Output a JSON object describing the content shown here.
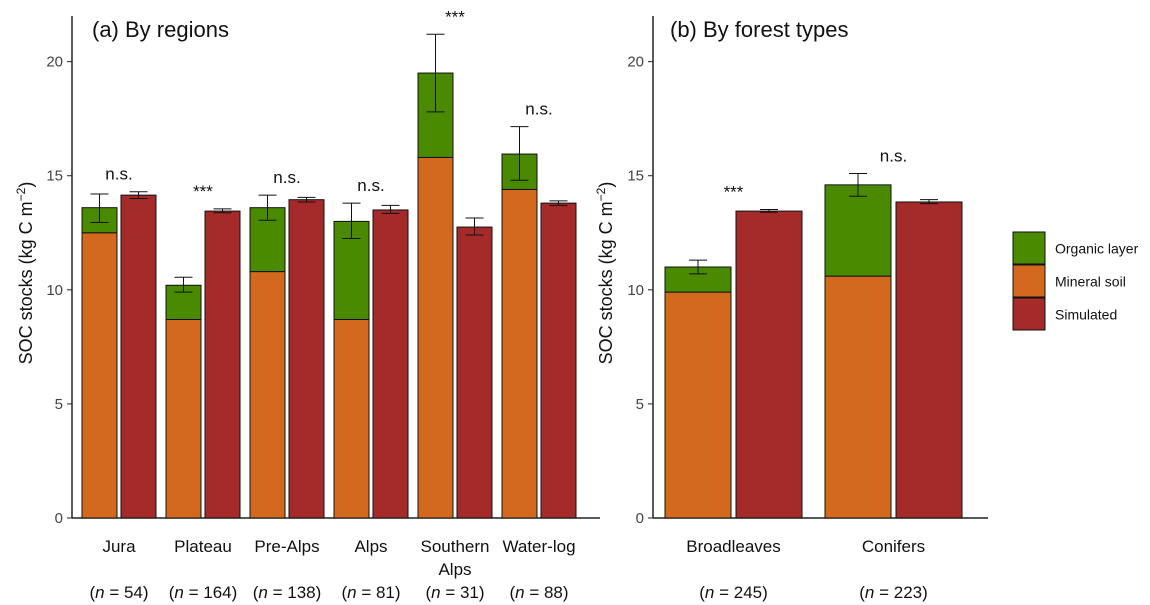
{
  "colors": {
    "organic": "#4a8a00",
    "mineral": "#d2691e",
    "simulated": "#a52a2a",
    "bar_stroke": "#111111",
    "axis": "#222222"
  },
  "legend": {
    "items": [
      {
        "label": "Organic layer",
        "key": "organic"
      },
      {
        "label": "Mineral soil",
        "key": "mineral"
      },
      {
        "label": "Simulated",
        "key": "simulated"
      }
    ]
  },
  "chart_data": [
    {
      "type": "bar",
      "title": "(a) By regions",
      "ylabel": "SOC stocks (kg C m",
      "ylabel_sup": "−2",
      "ylabel_end": ")",
      "ylim": [
        0,
        22
      ],
      "yticks": [
        0,
        5,
        10,
        15,
        20
      ],
      "categories": [
        {
          "label": [
            "Jura"
          ],
          "n": "54"
        },
        {
          "label": [
            "Plateau"
          ],
          "n": "164"
        },
        {
          "label": [
            "Pre-Alps"
          ],
          "n": "138"
        },
        {
          "label": [
            "Alps"
          ],
          "n": "81"
        },
        {
          "label": [
            "Southern",
            "Alps"
          ],
          "n": "31"
        },
        {
          "label": [
            "Water-log"
          ],
          "n": "88"
        }
      ],
      "series": [
        {
          "name": "Mineral soil",
          "values": [
            12.5,
            8.7,
            10.8,
            8.7,
            15.8,
            14.4
          ]
        },
        {
          "name": "Organic layer",
          "values": [
            1.1,
            1.5,
            2.8,
            4.3,
            3.7,
            1.55
          ]
        },
        {
          "name": "Simulated",
          "values": [
            14.15,
            13.45,
            13.95,
            13.5,
            12.75,
            13.8
          ]
        }
      ],
      "observed_error": [
        [
          12.95,
          14.2
        ],
        [
          9.9,
          10.55
        ],
        [
          13.05,
          14.15
        ],
        [
          12.25,
          13.8
        ],
        [
          17.8,
          21.2
        ],
        [
          14.8,
          17.15
        ]
      ],
      "simulated_error": [
        [
          14.0,
          14.3
        ],
        [
          13.38,
          13.55
        ],
        [
          13.85,
          14.05
        ],
        [
          13.35,
          13.7
        ],
        [
          12.4,
          13.15
        ],
        [
          13.7,
          13.9
        ]
      ],
      "significance": [
        "n.s.",
        "***",
        "n.s.",
        "n.s.",
        "***",
        "n.s."
      ],
      "n_prefix": "(",
      "n_italic": "n",
      "n_mid": " = ",
      "n_suffix": ")"
    },
    {
      "type": "bar",
      "title": "(b) By forest types",
      "ylabel": "SOC stocks (kg C m",
      "ylabel_sup": "−2",
      "ylabel_end": ")",
      "ylim": [
        0,
        22
      ],
      "yticks": [
        0,
        5,
        10,
        15,
        20
      ],
      "categories": [
        {
          "label": [
            "Broadleaves"
          ],
          "n": "245"
        },
        {
          "label": [
            "Conifers"
          ],
          "n": "223"
        }
      ],
      "series": [
        {
          "name": "Mineral soil",
          "values": [
            9.9,
            10.6
          ]
        },
        {
          "name": "Organic layer",
          "values": [
            1.1,
            4.0
          ]
        },
        {
          "name": "Simulated",
          "values": [
            13.45,
            13.85
          ]
        }
      ],
      "observed_error": [
        [
          10.7,
          11.3
        ],
        [
          14.1,
          15.1
        ]
      ],
      "simulated_error": [
        [
          13.4,
          13.52
        ],
        [
          13.78,
          13.95
        ]
      ],
      "significance": [
        "***",
        "n.s."
      ],
      "n_prefix": "(",
      "n_italic": "n",
      "n_mid": " = ",
      "n_suffix": ")"
    }
  ]
}
